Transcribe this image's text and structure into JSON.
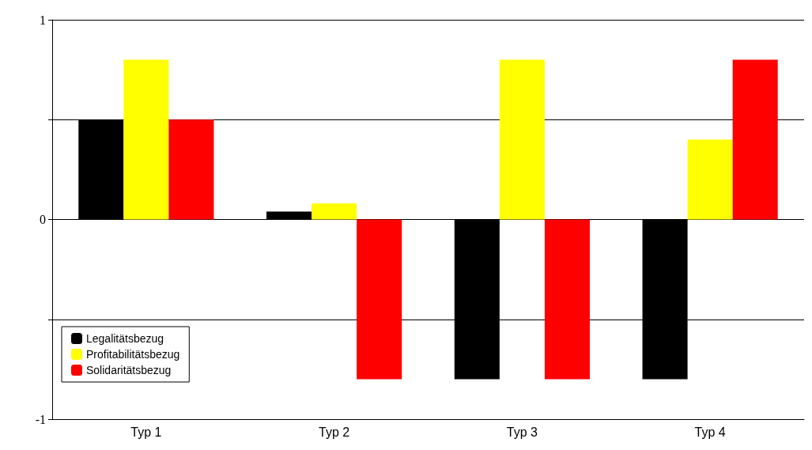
{
  "chart_data": {
    "type": "bar",
    "categories": [
      "Typ 1",
      "Typ 2",
      "Typ 3",
      "Typ 4"
    ],
    "series": [
      {
        "name": "Legalitätsbezug",
        "color": "#000000",
        "values": [
          0.5,
          0.04,
          -0.8,
          -0.8
        ]
      },
      {
        "name": "Profitabilitätsbezug",
        "color": "#ffff00",
        "values": [
          0.8,
          0.08,
          0.8,
          0.4
        ]
      },
      {
        "name": "Solidaritätsbezug",
        "color": "#ff0000",
        "values": [
          0.5,
          -0.8,
          -0.8,
          0.8
        ]
      }
    ],
    "ylim": [
      -1,
      1
    ],
    "yticks": [
      -1,
      {
        "value": -0.5,
        "label": null
      },
      0,
      {
        "value": 0.5,
        "label": null
      },
      1
    ],
    "grid": "y",
    "legend": "bottom left"
  }
}
